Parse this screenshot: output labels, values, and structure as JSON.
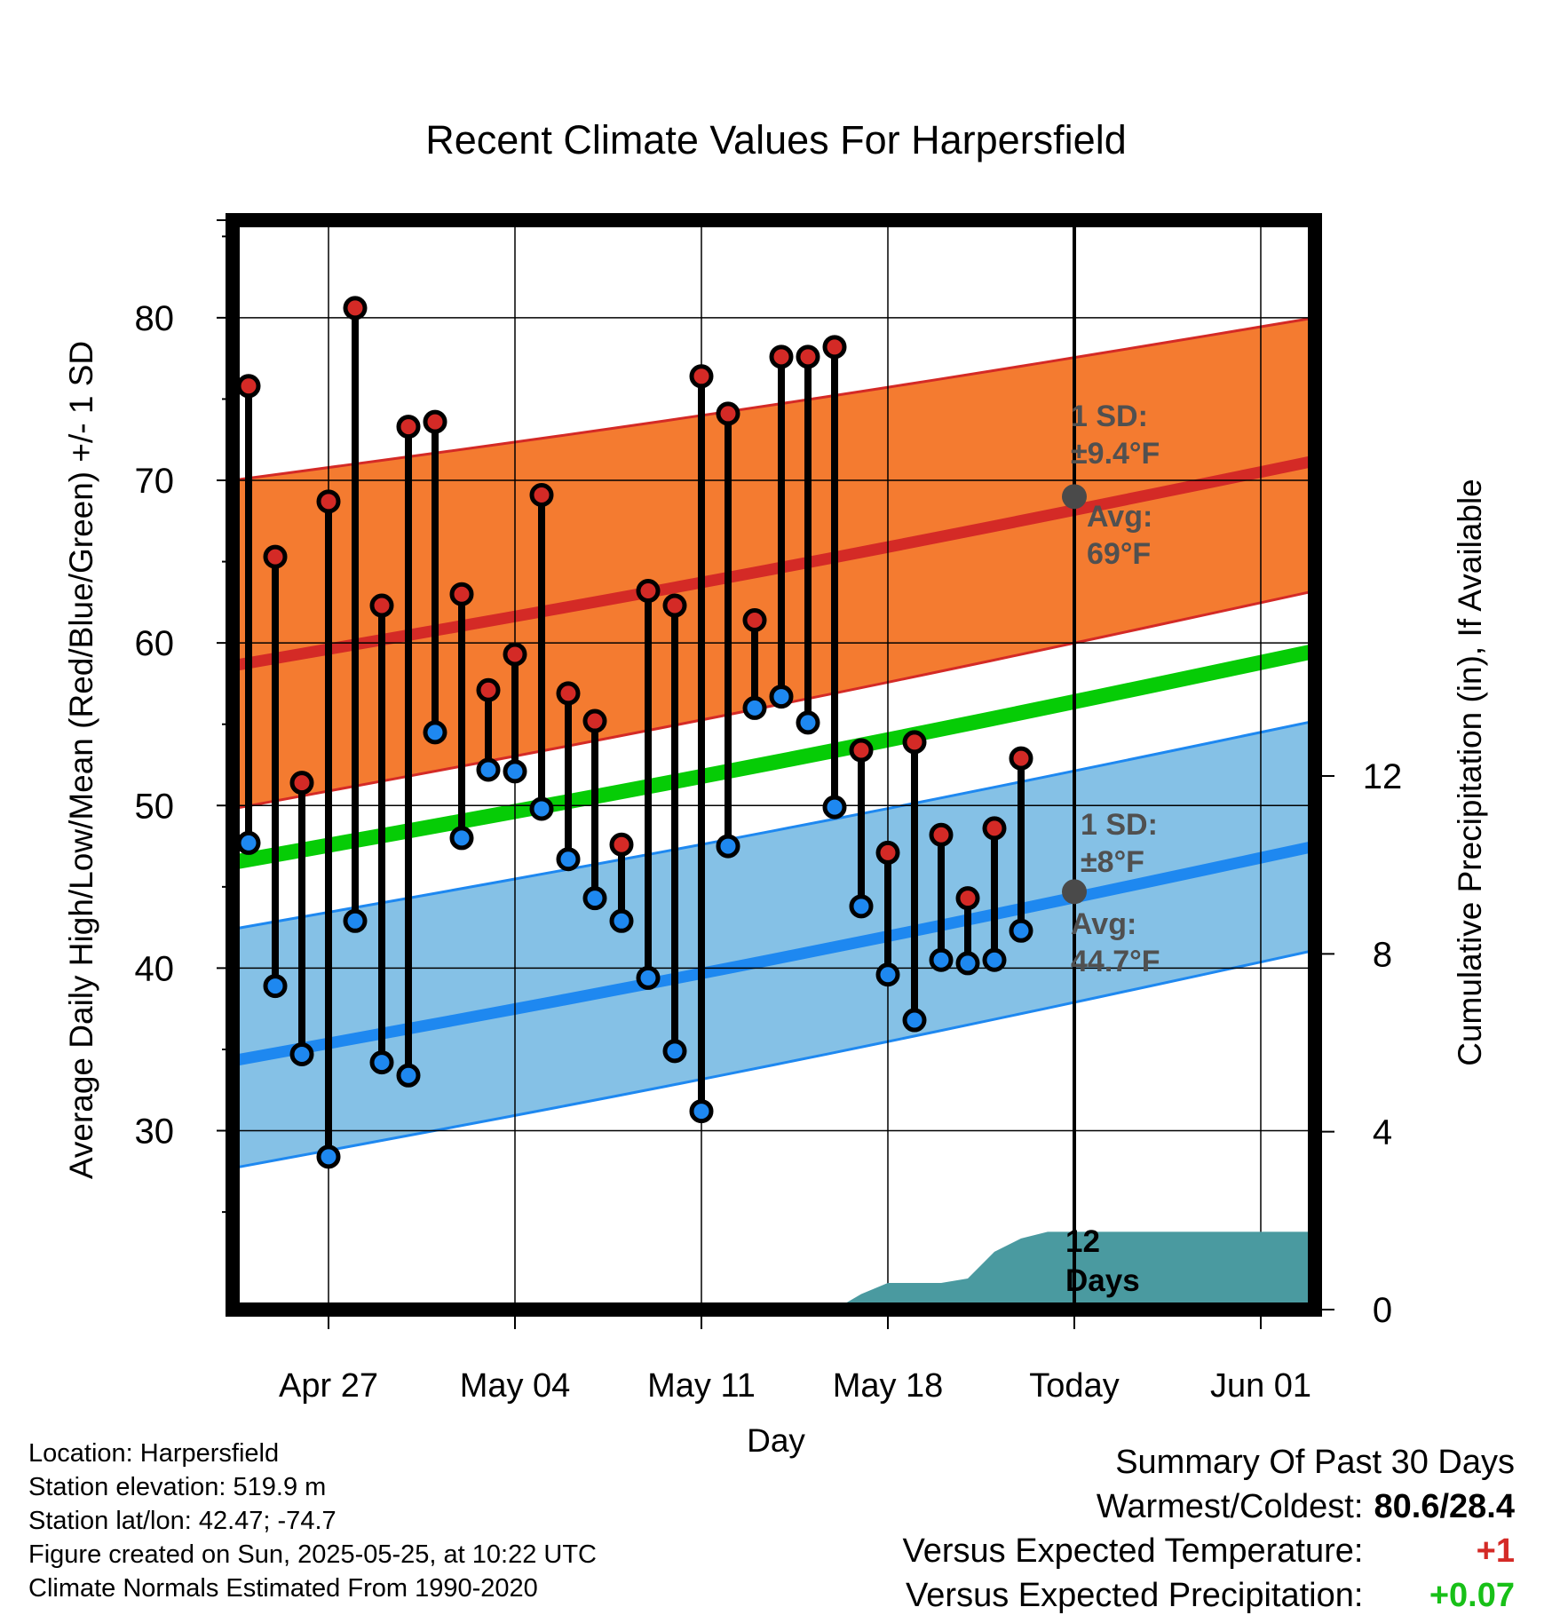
{
  "chart_data": {
    "type": "line",
    "title": "Recent Climate Values For Harpersfield",
    "xlabel": "Day",
    "ylabel": "Average Daily High/Low/Mean (Red/Blue/Green) +/- 1 SD",
    "y2label": "Cumulative Precipitation (in), If Available",
    "ylim": [
      19,
      86
    ],
    "y2lim": [
      0,
      24.5
    ],
    "x_ticks": [
      "Apr 27",
      "May 04",
      "May 11",
      "May 18",
      "Today",
      "Jun 01"
    ],
    "y_ticks": [
      30,
      40,
      50,
      60,
      70,
      80
    ],
    "y2_ticks": [
      0,
      4,
      8,
      12
    ],
    "days": [
      "Apr 24",
      "Apr 25",
      "Apr 26",
      "Apr 27",
      "Apr 28",
      "Apr 29",
      "Apr 30",
      "May 01",
      "May 02",
      "May 03",
      "May 04",
      "May 05",
      "May 06",
      "May 07",
      "May 08",
      "May 09",
      "May 10",
      "May 11",
      "May 12",
      "May 13",
      "May 14",
      "May 15",
      "May 16",
      "May 17",
      "May 18",
      "May 19",
      "May 20",
      "May 21",
      "May 22",
      "May 23",
      "May 24"
    ],
    "series": [
      {
        "name": "High",
        "values": [
          75.8,
          65.3,
          51.4,
          68.7,
          80.6,
          62.3,
          73.3,
          73.6,
          63.0,
          57.1,
          59.3,
          69.1,
          56.9,
          55.2,
          47.6,
          63.2,
          62.3,
          76.4,
          74.1,
          61.4,
          77.6,
          77.6,
          78.2,
          53.4,
          47.1,
          53.9,
          48.2,
          44.3,
          48.6,
          52.9,
          null
        ]
      },
      {
        "name": "Low",
        "values": [
          47.7,
          38.9,
          34.7,
          28.4,
          42.9,
          34.2,
          33.4,
          54.5,
          48.0,
          52.2,
          52.1,
          49.8,
          46.7,
          44.3,
          42.9,
          39.4,
          34.9,
          31.2,
          47.5,
          56.0,
          56.7,
          55.1,
          49.9,
          43.8,
          39.6,
          36.8,
          40.5,
          40.3,
          40.5,
          42.3,
          null
        ]
      }
    ],
    "normal_high": {
      "avg_start": 58.6,
      "avg_end": 71.2,
      "sd_upper_start": 70.0,
      "sd_upper_end": 80.0,
      "sd_lower_start": 49.8,
      "sd_lower_end": 63.2,
      "label_sd": "1 SD:",
      "label_sd_value": "±9.4°F",
      "label_avg": "Avg:",
      "label_avg_value": "69°F",
      "today_avg": 69.0
    },
    "normal_low": {
      "avg_start": 34.3,
      "avg_end": 47.5,
      "sd_upper_start": 42.4,
      "sd_upper_end": 55.2,
      "sd_lower_start": 27.7,
      "sd_lower_end": 41.1,
      "label_sd": "1 SD:",
      "label_sd_value": "±8°F",
      "label_avg": "Avg:",
      "label_avg_value": "44.7°F",
      "today_avg": 44.7
    },
    "normal_mean": {
      "start": 46.5,
      "end": 59.5
    },
    "precip_cumulative": {
      "days": [
        "May 16",
        "May 17",
        "May 18",
        "May 19",
        "May 20",
        "May 21",
        "May 22",
        "May 23",
        "May 24",
        "Jun 03"
      ],
      "values": [
        0,
        0.35,
        0.6,
        0.6,
        0.6,
        0.7,
        1.3,
        1.6,
        1.75,
        1.75
      ]
    },
    "today_label_line1": "12",
    "today_label_line2": "Days",
    "colors": {
      "high_band": "#f47b30",
      "high_avg": "#d42a26",
      "low_band": "#85c1e6",
      "low_avg": "#1e88f0",
      "mean": "#06cc06",
      "precip": "#4a9aa0",
      "high_dot": "#d42a26",
      "low_dot": "#1e88f0",
      "annotation": "#505050"
    }
  },
  "footer": {
    "location": "Location: Harpersfield",
    "elevation": "Station elevation: 519.9 m",
    "latlon": "Station lat/lon: 42.47; -74.7",
    "created": "Figure created on Sun, 2025-05-25, at 10:22 UTC",
    "normals": "Climate Normals Estimated From 1990-2020"
  },
  "summary": {
    "title": "Summary Of Past 30 Days",
    "warm_cold_label": "Warmest/Coldest:",
    "warm_cold_value": "80.6/28.4",
    "temp_label": "Versus Expected Temperature:",
    "temp_value": "+1",
    "temp_color": "#d42a26",
    "precip_label": "Versus Expected Precipitation:",
    "precip_value": "+0.07",
    "precip_color": "#18c018"
  }
}
